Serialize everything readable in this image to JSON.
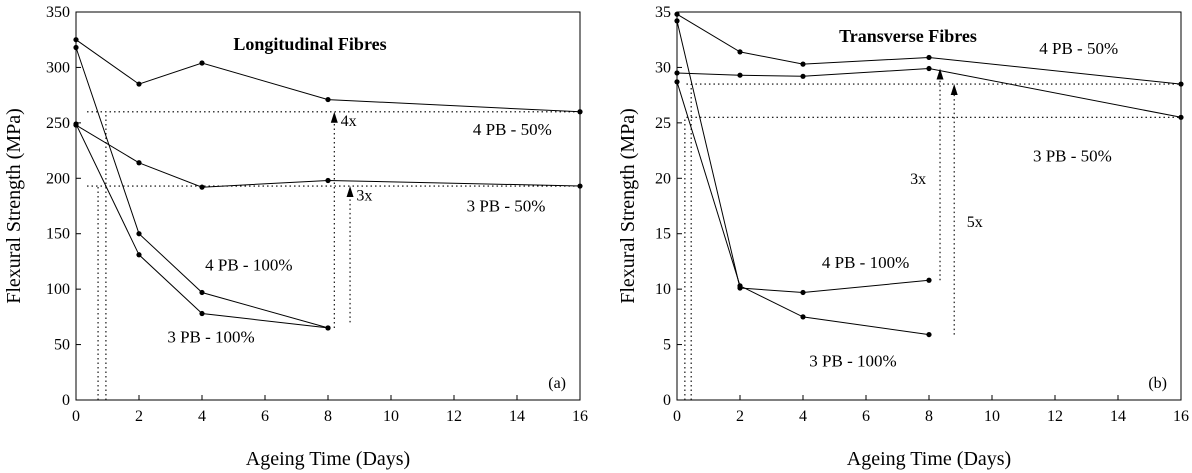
{
  "chart_data": [
    {
      "type": "line",
      "panel": "(a)",
      "title": "Longitudinal Fibres",
      "xlabel": "Ageing Time (Days)",
      "ylabel": "Flexural Strength (MPa)",
      "xlim": [
        0,
        16
      ],
      "ylim": [
        0,
        350
      ],
      "xticks": [
        "0",
        "2",
        "4",
        "6",
        "8",
        "10",
        "12",
        "14",
        "16"
      ],
      "yticks": [
        "0",
        "50",
        "100",
        "150",
        "200",
        "250",
        "300",
        "350"
      ],
      "grid": false,
      "series": [
        {
          "name": "4 PB - 50%",
          "x": [
            0,
            2,
            4,
            8,
            16
          ],
          "y": [
            325,
            285,
            304,
            271,
            260
          ]
        },
        {
          "name": "3 PB - 50%",
          "x": [
            0,
            2,
            4,
            8,
            16
          ],
          "y": [
            248,
            214,
            192,
            198,
            193
          ]
        },
        {
          "name": "4 PB - 100%",
          "x": [
            0,
            2,
            4,
            8
          ],
          "y": [
            318,
            150,
            97,
            65
          ]
        },
        {
          "name": "3 PB - 100%",
          "x": [
            0,
            2,
            4,
            8
          ],
          "y": [
            249,
            131,
            78,
            65
          ]
        }
      ],
      "annotations": [
        {
          "text": "4x",
          "arrow_x": 8.2,
          "arrow_from_y": 65,
          "arrow_to_y": 260,
          "text_x": 8.4,
          "text_y": 247
        },
        {
          "text": "3x",
          "arrow_x": 8.7,
          "arrow_from_y": 70,
          "arrow_to_y": 193,
          "text_x": 8.9,
          "text_y": 180
        }
      ],
      "guides": [
        {
          "y": 260,
          "x_from": 0.35,
          "x_to": 16
        },
        {
          "y": 193,
          "x_from": 0.35,
          "x_to": 16
        },
        {
          "x": 0.7,
          "y_from": 0,
          "y_to": 193
        },
        {
          "x": 0.95,
          "y_from": 0,
          "y_to": 260
        }
      ],
      "label_positions": {
        "4 PB - 50%": [
          12.6,
          239
        ],
        "3 PB - 50%": [
          12.4,
          170
        ],
        "4 PB - 100%": [
          4.1,
          117
        ],
        "3 PB - 100%": [
          2.9,
          52
        ]
      }
    },
    {
      "type": "line",
      "panel": "(b)",
      "title": "Transverse Fibres",
      "xlabel": "Ageing Time (Days)",
      "ylabel": "Flexural Strength (MPa)",
      "xlim": [
        0,
        16
      ],
      "ylim": [
        0,
        35
      ],
      "xticks": [
        "0",
        "2",
        "4",
        "6",
        "8",
        "10",
        "12",
        "14",
        "16"
      ],
      "yticks": [
        "0",
        "5",
        "10",
        "15",
        "20",
        "25",
        "30",
        "35"
      ],
      "grid": false,
      "series": [
        {
          "name": "4 PB - 50%",
          "x": [
            0,
            2,
            4,
            8,
            16
          ],
          "y": [
            34.8,
            31.4,
            30.3,
            30.9,
            28.5
          ]
        },
        {
          "name": "3 PB - 50%",
          "x": [
            0,
            2,
            4,
            8,
            16
          ],
          "y": [
            29.5,
            29.3,
            29.2,
            29.9,
            25.5
          ]
        },
        {
          "name": "4 PB - 100%",
          "x": [
            0,
            2,
            4,
            8
          ],
          "y": [
            34.2,
            10.1,
            9.7,
            10.8
          ]
        },
        {
          "name": "3 PB - 100%",
          "x": [
            0,
            2,
            4,
            8
          ],
          "y": [
            28.7,
            10.3,
            7.5,
            5.9
          ]
        }
      ],
      "annotations": [
        {
          "text": "3x",
          "arrow_x": 8.35,
          "arrow_from_y": 10.8,
          "arrow_to_y": 29.9,
          "text_x": 7.4,
          "text_y": 19.5
        },
        {
          "text": "5x",
          "arrow_x": 8.8,
          "arrow_from_y": 5.9,
          "arrow_to_y": 28.5,
          "text_x": 9.2,
          "text_y": 15.6
        }
      ],
      "guides": [
        {
          "y": 28.5,
          "x_from": 0.3,
          "x_to": 16
        },
        {
          "y": 25.5,
          "x_from": 0.3,
          "x_to": 16
        },
        {
          "x": 0.25,
          "y_from": 0,
          "y_to": 25.5
        },
        {
          "x": 0.45,
          "y_from": 0,
          "y_to": 28.5
        }
      ],
      "label_positions": {
        "4 PB - 50%": [
          11.5,
          31.2
        ],
        "3 PB - 50%": [
          11.3,
          21.5
        ],
        "4 PB - 100%": [
          4.6,
          11.9
        ],
        "3 PB - 100%": [
          4.2,
          3.0
        ]
      }
    }
  ]
}
